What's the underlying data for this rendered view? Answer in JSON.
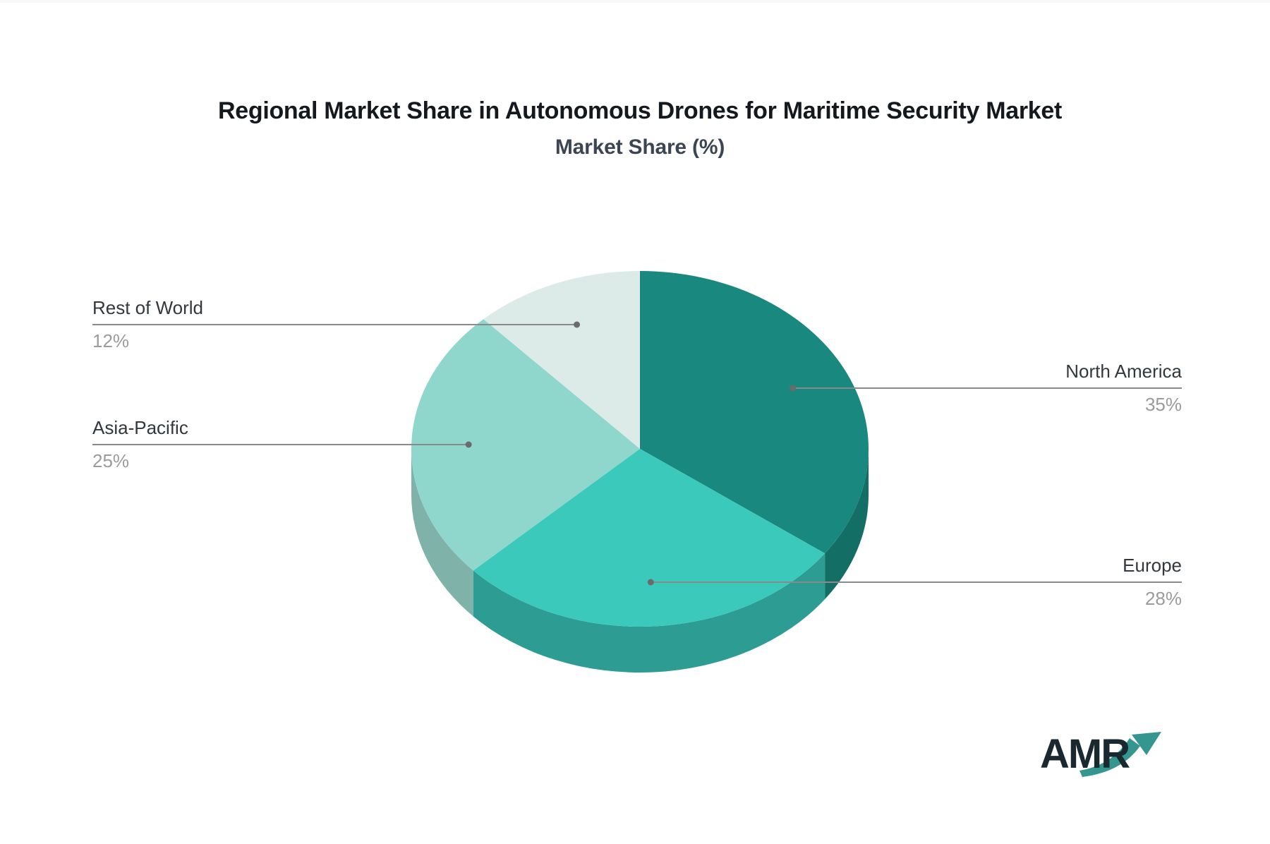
{
  "title": "Regional Market Share in Autonomous Drones for Maritime Security Market",
  "subtitle": "Market Share (%)",
  "logo": {
    "text": "AMR",
    "text_color": "#1a2930",
    "arrow_color": "#35968f"
  },
  "chart_data": {
    "type": "pie",
    "style": "3d",
    "title": "Regional Market Share in Autonomous Drones for Maritime Security Market",
    "subtitle": "Market Share (%)",
    "unit": "%",
    "start_angle_deg": 0,
    "direction": "clockwise",
    "slices": [
      {
        "label": "North America",
        "value": 35,
        "display": "35%",
        "color": "#19887e",
        "side_color": "#136e66",
        "label_side": "right"
      },
      {
        "label": "Europe",
        "value": 28,
        "display": "28%",
        "color": "#3bc9bb",
        "side_color": "#2d9d94",
        "label_side": "right"
      },
      {
        "label": "Asia-Pacific",
        "value": 25,
        "display": "25%",
        "color": "#8fd6cc",
        "side_color": "#7fb3aa",
        "label_side": "left"
      },
      {
        "label": "Rest of World",
        "value": 12,
        "display": "12%",
        "color": "#dcebe7",
        "side_color": "#bfd9d4",
        "label_side": "left"
      }
    ],
    "leader_line_color": "#8a8a8a",
    "dot_color": "#6b6b6b",
    "label_name_color": "#33383d",
    "label_value_color": "#9b9b9b",
    "legend": "none",
    "grid": false
  }
}
